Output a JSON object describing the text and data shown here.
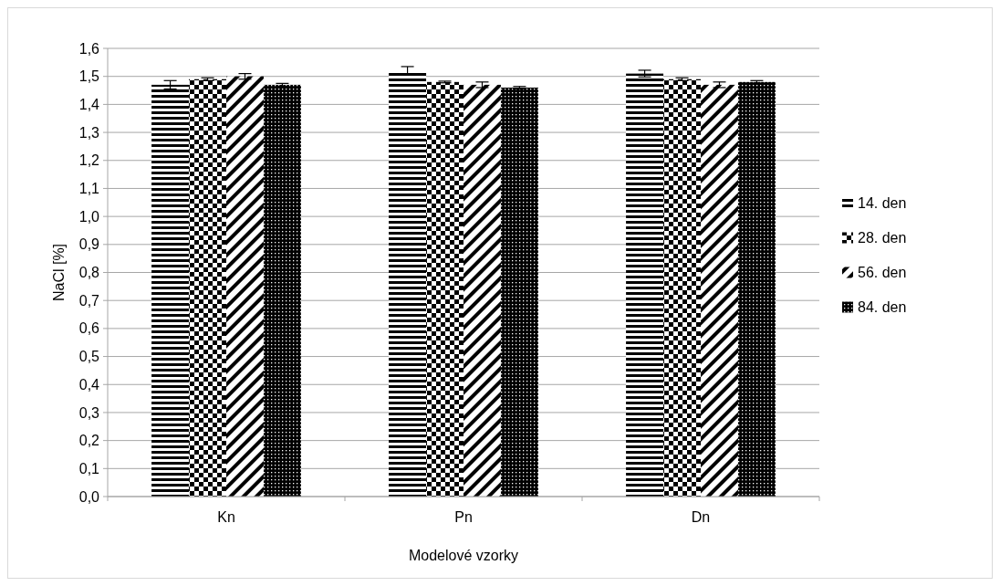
{
  "chart_data": {
    "type": "bar",
    "xlabel": "Modelové vzorky",
    "ylabel": "NaCl [%]",
    "categories": [
      "Kn",
      "Pn",
      "Dn"
    ],
    "series": [
      {
        "name": "14. den",
        "color": "#000000",
        "values": [
          1.47,
          1.52,
          1.51
        ],
        "errors": [
          0.015,
          0.015,
          0.012
        ]
      },
      {
        "name": "28. den",
        "color": "#000000",
        "values": [
          1.49,
          1.48,
          1.49
        ],
        "errors": [
          0.005,
          0.003,
          0.005
        ]
      },
      {
        "name": "56. den",
        "color": "#000000",
        "values": [
          1.5,
          1.47,
          1.47
        ],
        "errors": [
          0.01,
          0.01,
          0.01
        ]
      },
      {
        "name": "84. den",
        "color": "#000000",
        "values": [
          1.47,
          1.46,
          1.48
        ],
        "errors": [
          0.005,
          0.004,
          0.005
        ]
      }
    ],
    "ylim": [
      0,
      1.6
    ],
    "yticks": [
      {
        "value": 0,
        "label": "0,0"
      },
      {
        "value": 0.1,
        "label": "0,1"
      },
      {
        "value": 0.2,
        "label": "0,2"
      },
      {
        "value": 0.3,
        "label": "0,3"
      },
      {
        "value": 0.4,
        "label": "0,4"
      },
      {
        "value": 0.5,
        "label": "0,5"
      },
      {
        "value": 0.6,
        "label": "0,6"
      },
      {
        "value": 0.7,
        "label": "0,7"
      },
      {
        "value": 0.8,
        "label": "0,8"
      },
      {
        "value": 0.9,
        "label": "0,9"
      },
      {
        "value": 1,
        "label": "1,0"
      },
      {
        "value": 1.1,
        "label": "1,1"
      },
      {
        "value": 1.2,
        "label": "1,2"
      },
      {
        "value": 1.3,
        "label": "1,3"
      },
      {
        "value": 1.4,
        "label": "1,4"
      },
      {
        "value": 1.5,
        "label": "1,5"
      },
      {
        "value": 1.6,
        "label": "1,6"
      }
    ],
    "grid": "y",
    "legend": "right"
  }
}
